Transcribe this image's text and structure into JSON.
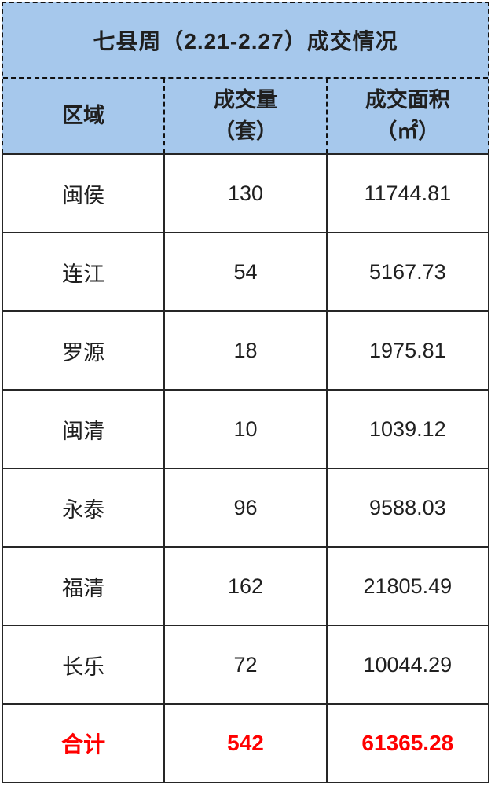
{
  "chart_data": {
    "type": "table",
    "title": "七县周（2.21-2.27）成交情况",
    "columns": [
      {
        "line1": "区域",
        "line2": ""
      },
      {
        "line1": "成交量",
        "line2": "（套）"
      },
      {
        "line1": "成交面积",
        "line2": "（㎡）"
      }
    ],
    "rows": [
      {
        "region": "闽侯",
        "volume": "130",
        "area": "11744.81"
      },
      {
        "region": "连江",
        "volume": "54",
        "area": "5167.73"
      },
      {
        "region": "罗源",
        "volume": "18",
        "area": "1975.81"
      },
      {
        "region": "闽清",
        "volume": "10",
        "area": "1039.12"
      },
      {
        "region": "永泰",
        "volume": "96",
        "area": "9588.03"
      },
      {
        "region": "福清",
        "volume": "162",
        "area": "21805.49"
      },
      {
        "region": "长乐",
        "volume": "72",
        "area": "10044.29"
      }
    ],
    "total": {
      "region": "合计",
      "volume": "542",
      "area": "61365.28"
    }
  },
  "colors": {
    "header_bg": "#a6c8ec",
    "dashed_border": "#111111",
    "solid_border": "#262626",
    "body_text": "#1f1f1f",
    "total_text": "#ff0000"
  }
}
